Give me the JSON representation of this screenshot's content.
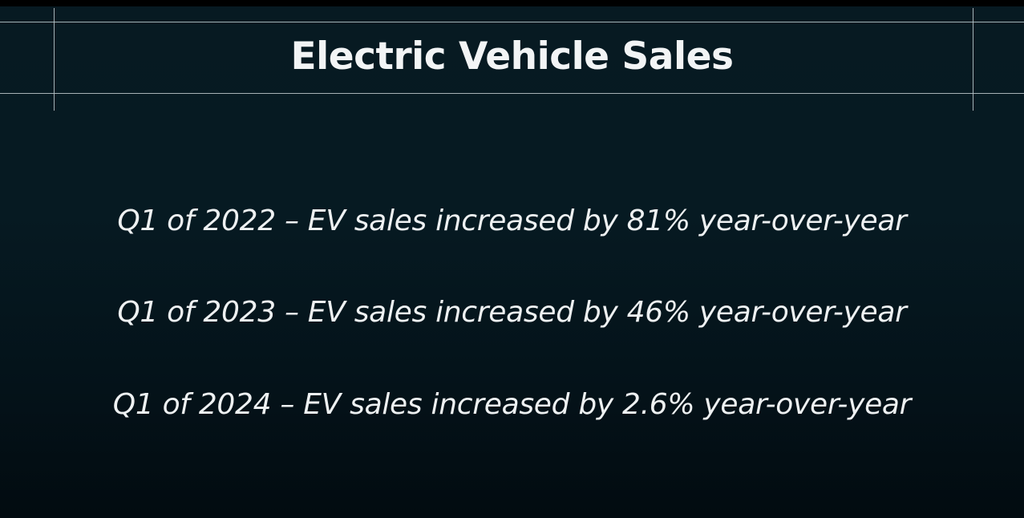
{
  "slide": {
    "title": "Electric Vehicle Sales",
    "stats": [
      {
        "text": "Q1 of 2022 – EV sales increased by 81% year-over-year"
      },
      {
        "text": "Q1 of 2023 – EV sales increased by 46% year-over-year"
      },
      {
        "text": "Q1 of 2024 – EV sales increased by 2.6% year-over-year"
      }
    ]
  },
  "colors": {
    "background": "#061a22",
    "text": "#eef1f2",
    "rule": "#b8c2c6"
  }
}
